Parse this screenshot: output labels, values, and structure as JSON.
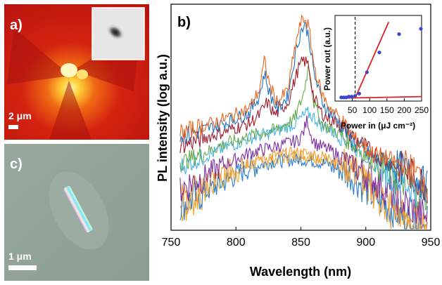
{
  "panels": {
    "a": {
      "label": "a)",
      "scale_bar": "2 μm"
    },
    "c": {
      "label": "c)",
      "scale_bar": "1 μm"
    }
  },
  "chart_data": [
    {
      "panel_label": "b)",
      "type": "line",
      "xlabel": "Wavelength (nm)",
      "ylabel": "PL intensity (log a.u.)",
      "xlim": [
        750,
        950
      ],
      "x_ticks": [
        "750",
        "800",
        "850",
        "900",
        "950"
      ],
      "y_ticks_shown": false,
      "grid": false,
      "legend": null,
      "series": [
        {
          "color": "#e8641e",
          "x": [
            760,
            790,
            810,
            818,
            822,
            826,
            832,
            840,
            846,
            850,
            853,
            856,
            860,
            866,
            872,
            878,
            885,
            892,
            905,
            930,
            948
          ],
          "y": [
            0.46,
            0.52,
            0.57,
            0.66,
            0.8,
            0.68,
            0.6,
            0.66,
            0.88,
            0.98,
            1.0,
            0.96,
            0.78,
            0.64,
            0.58,
            0.54,
            0.48,
            0.42,
            0.36,
            0.3,
            0.22
          ]
        },
        {
          "color": "#1f6fc0",
          "x": [
            760,
            790,
            810,
            818,
            822,
            826,
            832,
            840,
            846,
            850,
            853,
            856,
            860,
            866,
            872,
            878,
            885,
            892,
            905,
            930,
            948
          ],
          "y": [
            0.44,
            0.5,
            0.55,
            0.63,
            0.74,
            0.64,
            0.57,
            0.63,
            0.84,
            0.94,
            0.97,
            0.92,
            0.74,
            0.61,
            0.55,
            0.52,
            0.46,
            0.4,
            0.34,
            0.28,
            0.2
          ]
        },
        {
          "color": "#9e1a2a",
          "x": [
            760,
            790,
            810,
            818,
            824,
            830,
            840,
            848,
            852,
            856,
            860,
            866,
            872,
            880,
            890,
            905,
            930,
            948
          ],
          "y": [
            0.4,
            0.46,
            0.5,
            0.54,
            0.6,
            0.54,
            0.6,
            0.76,
            0.8,
            0.78,
            0.62,
            0.55,
            0.52,
            0.5,
            0.44,
            0.36,
            0.28,
            0.2
          ]
        },
        {
          "color": "#6aa84f",
          "x": [
            760,
            790,
            810,
            830,
            845,
            852,
            856,
            860,
            866,
            875,
            890,
            905,
            930,
            948
          ],
          "y": [
            0.32,
            0.4,
            0.44,
            0.47,
            0.52,
            0.64,
            0.78,
            0.6,
            0.5,
            0.47,
            0.4,
            0.32,
            0.22,
            0.14
          ]
        },
        {
          "color": "#3fb5e8",
          "x": [
            760,
            790,
            810,
            830,
            845,
            855,
            860,
            866,
            875,
            890,
            905,
            930,
            948
          ],
          "y": [
            0.3,
            0.38,
            0.43,
            0.46,
            0.5,
            0.55,
            0.53,
            0.49,
            0.46,
            0.4,
            0.32,
            0.22,
            0.14
          ]
        },
        {
          "color": "#7b2fa0",
          "x": [
            760,
            790,
            810,
            830,
            848,
            852,
            855,
            858,
            862,
            870,
            885,
            905,
            930,
            948
          ],
          "y": [
            0.2,
            0.3,
            0.36,
            0.39,
            0.42,
            0.46,
            0.52,
            0.44,
            0.4,
            0.38,
            0.33,
            0.24,
            0.12,
            0.05
          ]
        },
        {
          "color": "#e8a62a",
          "x": [
            760,
            790,
            810,
            830,
            850,
            870,
            890,
            905,
            920,
            923,
            925,
            930,
            948
          ],
          "y": [
            0.1,
            0.24,
            0.3,
            0.33,
            0.35,
            0.33,
            0.28,
            0.18,
            0.06,
            0.36,
            0.06,
            0.03,
            0.0
          ]
        },
        {
          "color": "#f39a34",
          "x": [
            760,
            790,
            810,
            830,
            850,
            870,
            890,
            905,
            930,
            948
          ],
          "y": [
            0.14,
            0.26,
            0.32,
            0.35,
            0.36,
            0.34,
            0.28,
            0.18,
            0.06,
            0.02
          ]
        },
        {
          "color": "#2c7dd0",
          "x": [
            760,
            790,
            810,
            830,
            850,
            870,
            890,
            905,
            930,
            948
          ],
          "y": [
            0.12,
            0.22,
            0.29,
            0.32,
            0.33,
            0.31,
            0.25,
            0.16,
            0.05,
            0.02
          ]
        }
      ]
    },
    {
      "type": "scatter",
      "xlabel": "Power in (μJ cm⁻²)",
      "ylabel": "Power out (a.u.)",
      "xlim": [
        0,
        250
      ],
      "x_ticks": [
        "50",
        "100",
        "150",
        "200",
        "250"
      ],
      "points": {
        "color": "#3a47c9",
        "x": [
          18,
          25,
          32,
          40,
          48,
          58,
          70,
          92,
          128,
          185,
          248
        ],
        "y": [
          0.03,
          0.03,
          0.03,
          0.04,
          0.04,
          0.05,
          0.08,
          0.36,
          0.62,
          0.86,
          0.93
        ]
      },
      "fits": [
        {
          "color": "#e02020",
          "x": [
            15,
            250
          ],
          "y": [
            0.02,
            0.04
          ]
        },
        {
          "color": "#e02020",
          "x": [
            60,
            155
          ],
          "y": [
            0.04,
            1.02
          ]
        }
      ],
      "threshold_line_x": 58
    }
  ]
}
